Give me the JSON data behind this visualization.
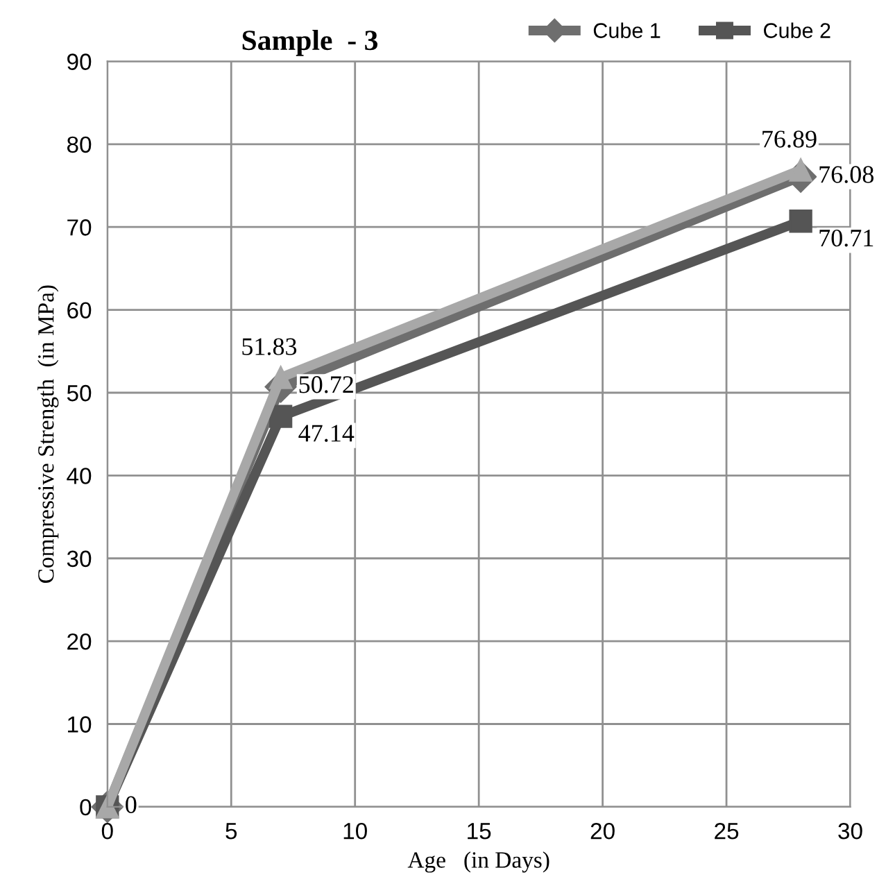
{
  "chart_data": {
    "type": "line",
    "title": "Sample  - 3",
    "xlabel": "Age   (in Days)",
    "ylabel": "Compressive Strength  (in MPa)",
    "x": [
      0,
      7,
      28
    ],
    "series": [
      {
        "name": "Cube 1",
        "color": "#6e6e6e",
        "marker": "diamond",
        "values": [
          0,
          50.72,
          76.08
        ],
        "value_labels": [
          null,
          "50.72",
          "76.08"
        ]
      },
      {
        "name": "Cube 2",
        "color": "#555555",
        "marker": "square",
        "values": [
          0,
          47.14,
          70.71
        ],
        "value_labels": [
          null,
          "47.14",
          "70.71"
        ]
      },
      {
        "color": "#a8a8a8",
        "marker": "triangle",
        "values": [
          0,
          51.83,
          76.89
        ],
        "value_labels": [
          "0",
          "51.83",
          "76.89"
        ]
      }
    ],
    "xlim": [
      0,
      30
    ],
    "xticks": [
      0,
      5,
      10,
      15,
      20,
      25,
      30
    ],
    "ylim": [
      0,
      90
    ],
    "yticks": [
      0,
      10,
      20,
      30,
      40,
      50,
      60,
      70,
      80,
      90
    ],
    "grid": true,
    "legend": "top right"
  }
}
